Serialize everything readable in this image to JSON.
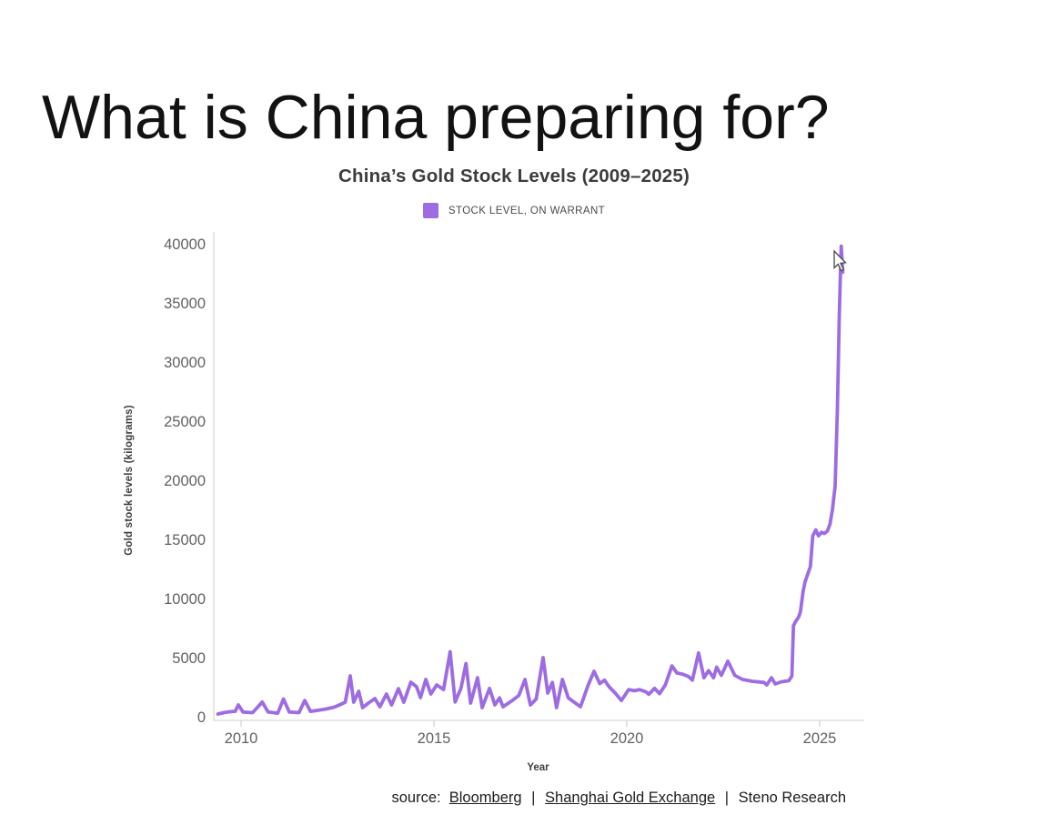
{
  "page": {
    "title": "What is China preparing for?"
  },
  "chart_data": {
    "type": "line",
    "title": "China’s Gold Stock Levels (2009–2025)",
    "xlabel": "Year",
    "ylabel": "Gold stock levels (kilograms)",
    "xlim": [
      2009.3,
      2025.75
    ],
    "ylim": [
      0,
      41000
    ],
    "x_ticks": [
      2010,
      2015,
      2020,
      2025
    ],
    "y_ticks": [
      0,
      5000,
      10000,
      15000,
      20000,
      25000,
      30000,
      35000,
      40000
    ],
    "grid": false,
    "legend_position": "top",
    "line_color": "#9d6ce2",
    "axis_color": "#d9d9d9",
    "tick_label_color": "#616161",
    "series": [
      {
        "name": "STOCK LEVEL, ON WARRANT",
        "color": "#9d6ce2",
        "points": [
          [
            2009.4,
            230
          ],
          [
            2009.55,
            350
          ],
          [
            2009.7,
            420
          ],
          [
            2009.85,
            460
          ],
          [
            2009.93,
            1000
          ],
          [
            2010.05,
            400
          ],
          [
            2010.3,
            350
          ],
          [
            2010.55,
            1250
          ],
          [
            2010.7,
            400
          ],
          [
            2010.95,
            300
          ],
          [
            2011.1,
            1500
          ],
          [
            2011.25,
            400
          ],
          [
            2011.5,
            350
          ],
          [
            2011.65,
            1380
          ],
          [
            2011.8,
            450
          ],
          [
            2012.0,
            550
          ],
          [
            2012.2,
            650
          ],
          [
            2012.4,
            800
          ],
          [
            2012.55,
            1000
          ],
          [
            2012.7,
            1230
          ],
          [
            2012.83,
            3460
          ],
          [
            2012.92,
            1230
          ],
          [
            2013.05,
            2150
          ],
          [
            2013.15,
            770
          ],
          [
            2013.3,
            1150
          ],
          [
            2013.47,
            1540
          ],
          [
            2013.6,
            850
          ],
          [
            2013.77,
            1920
          ],
          [
            2013.9,
            1000
          ],
          [
            2014.08,
            2380
          ],
          [
            2014.22,
            1230
          ],
          [
            2014.4,
            2920
          ],
          [
            2014.55,
            2540
          ],
          [
            2014.65,
            1615
          ],
          [
            2014.79,
            3150
          ],
          [
            2014.92,
            1920
          ],
          [
            2015.07,
            2690
          ],
          [
            2015.25,
            2300
          ],
          [
            2015.42,
            5500
          ],
          [
            2015.55,
            1250
          ],
          [
            2015.7,
            2400
          ],
          [
            2015.83,
            4500
          ],
          [
            2015.95,
            1150
          ],
          [
            2016.13,
            3300
          ],
          [
            2016.25,
            770
          ],
          [
            2016.44,
            2400
          ],
          [
            2016.58,
            1000
          ],
          [
            2016.7,
            1600
          ],
          [
            2016.79,
            850
          ],
          [
            2017.0,
            1300
          ],
          [
            2017.2,
            1800
          ],
          [
            2017.36,
            3150
          ],
          [
            2017.5,
            1000
          ],
          [
            2017.65,
            1500
          ],
          [
            2017.83,
            5000
          ],
          [
            2017.95,
            2000
          ],
          [
            2018.07,
            2900
          ],
          [
            2018.18,
            770
          ],
          [
            2018.33,
            3150
          ],
          [
            2018.48,
            1600
          ],
          [
            2018.65,
            1200
          ],
          [
            2018.8,
            850
          ],
          [
            2019.0,
            2690
          ],
          [
            2019.15,
            3850
          ],
          [
            2019.3,
            2800
          ],
          [
            2019.42,
            3100
          ],
          [
            2019.55,
            2500
          ],
          [
            2019.7,
            2000
          ],
          [
            2019.86,
            1380
          ],
          [
            2020.05,
            2300
          ],
          [
            2020.2,
            2200
          ],
          [
            2020.33,
            2300
          ],
          [
            2020.5,
            2100
          ],
          [
            2020.57,
            1900
          ],
          [
            2020.72,
            2400
          ],
          [
            2020.85,
            1950
          ],
          [
            2021.0,
            2700
          ],
          [
            2021.17,
            4300
          ],
          [
            2021.3,
            3700
          ],
          [
            2021.45,
            3600
          ],
          [
            2021.6,
            3400
          ],
          [
            2021.7,
            3100
          ],
          [
            2021.86,
            5400
          ],
          [
            2022.0,
            3300
          ],
          [
            2022.12,
            3900
          ],
          [
            2022.25,
            3300
          ],
          [
            2022.33,
            4200
          ],
          [
            2022.45,
            3500
          ],
          [
            2022.62,
            4700
          ],
          [
            2022.8,
            3500
          ],
          [
            2023.0,
            3150
          ],
          [
            2023.25,
            3000
          ],
          [
            2023.56,
            2900
          ],
          [
            2023.63,
            2690
          ],
          [
            2023.75,
            3300
          ],
          [
            2023.85,
            2770
          ],
          [
            2024.0,
            2950
          ],
          [
            2024.1,
            3000
          ],
          [
            2024.2,
            3050
          ],
          [
            2024.28,
            3460
          ],
          [
            2024.32,
            7700
          ],
          [
            2024.38,
            8080
          ],
          [
            2024.45,
            8400
          ],
          [
            2024.5,
            8850
          ],
          [
            2024.57,
            10600
          ],
          [
            2024.62,
            11400
          ],
          [
            2024.7,
            12150
          ],
          [
            2024.76,
            12700
          ],
          [
            2024.82,
            15300
          ],
          [
            2024.9,
            15800
          ],
          [
            2024.97,
            15300
          ],
          [
            2025.05,
            15600
          ],
          [
            2025.12,
            15500
          ],
          [
            2025.2,
            15700
          ],
          [
            2025.27,
            16300
          ],
          [
            2025.33,
            17500
          ],
          [
            2025.4,
            19500
          ],
          [
            2025.46,
            26000
          ],
          [
            2025.51,
            34000
          ],
          [
            2025.56,
            39800
          ],
          [
            2025.6,
            37600
          ]
        ]
      }
    ]
  },
  "source": {
    "prefix": "source:",
    "bloomberg": "Bloomberg",
    "shanghai": "Shanghai Gold Exchange",
    "steno": "Steno Research",
    "divider": "|"
  }
}
